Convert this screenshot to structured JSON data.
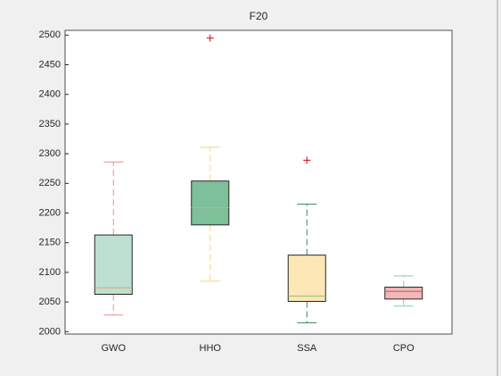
{
  "chart_data": {
    "type": "box",
    "title": "F20",
    "categories": [
      "GWO",
      "HHO",
      "SSA",
      "CPO"
    ],
    "boxes": [
      {
        "whislo": 2028,
        "q1": 2063,
        "med": 2074,
        "q3": 2163,
        "whishi": 2286,
        "fliers": [],
        "color": "#bde0d0",
        "whisker_color": "#f08a8a",
        "median_color": "#e0a070"
      },
      {
        "whislo": 2085,
        "q1": 2180,
        "med": 2209,
        "q3": 2254,
        "whishi": 2311,
        "fliers": [
          2495
        ],
        "color": "#7dc09a",
        "whisker_color": "#f5d67a",
        "median_color": "#c8b070"
      },
      {
        "whislo": 2015,
        "q1": 2051,
        "med": 2060,
        "q3": 2129,
        "whishi": 2215,
        "fliers": [
          2289
        ],
        "color": "#fde7b4",
        "whisker_color": "#2e8b57",
        "median_color": "#8cc08c"
      },
      {
        "whislo": 2043,
        "q1": 2055,
        "med": 2068,
        "q3": 2075,
        "whishi": 2094,
        "fliers": [],
        "color": "#f4b6b6",
        "whisker_color": "#7fcfb8",
        "median_color": "#b06060"
      }
    ],
    "flier_color": "#e00000",
    "ylim": [
      1996,
      2508
    ],
    "yticks": [
      2000,
      2050,
      2100,
      2150,
      2200,
      2250,
      2300,
      2350,
      2400,
      2450,
      2500
    ]
  }
}
